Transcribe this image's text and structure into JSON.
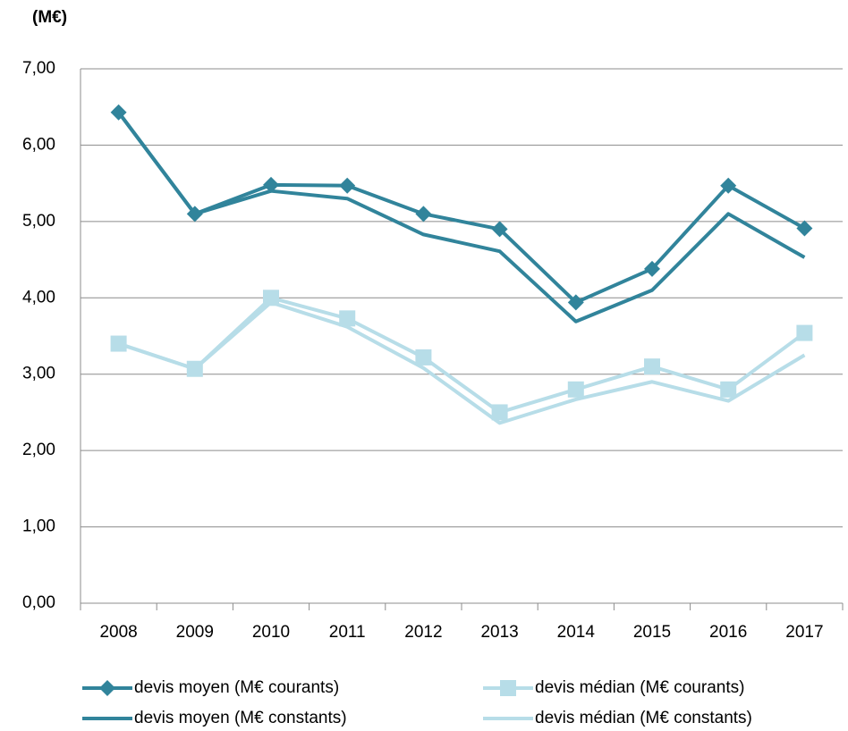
{
  "chart_data": {
    "type": "line",
    "ylabel": "(M€)",
    "categories": [
      "2008",
      "2009",
      "2010",
      "2011",
      "2012",
      "2013",
      "2014",
      "2015",
      "2016",
      "2017"
    ],
    "series": [
      {
        "name": "devis moyen (M€ courants)",
        "color": "#31849b",
        "marker": "diamond",
        "values": [
          6.43,
          5.1,
          5.48,
          5.47,
          5.1,
          4.9,
          3.94,
          4.38,
          5.47,
          4.91
        ]
      },
      {
        "name": "devis médian (M€ courants)",
        "color": "#b7dde8",
        "marker": "square",
        "values": [
          3.4,
          3.07,
          4.0,
          3.73,
          3.22,
          2.5,
          2.8,
          3.1,
          2.8,
          3.54
        ]
      },
      {
        "name": "devis moyen (M€ constants)",
        "color": "#31849b",
        "values": [
          6.43,
          5.1,
          5.4,
          5.3,
          4.83,
          4.61,
          3.69,
          4.1,
          5.1,
          4.53
        ]
      },
      {
        "name": "devis médian (M€ constants)",
        "color": "#b7dde8",
        "values": [
          3.4,
          3.07,
          3.94,
          3.62,
          3.08,
          2.36,
          2.67,
          2.9,
          2.65,
          3.25
        ]
      }
    ],
    "ylim": [
      0,
      7
    ],
    "yticks": [
      {
        "value": 0,
        "label": "0,00"
      },
      {
        "value": 1,
        "label": "1,00"
      },
      {
        "value": 2,
        "label": "2,00"
      },
      {
        "value": 3,
        "label": "3,00"
      },
      {
        "value": 4,
        "label": "4,00"
      },
      {
        "value": 5,
        "label": "5,00"
      },
      {
        "value": 6,
        "label": "6,00"
      },
      {
        "value": 7,
        "label": "7,00"
      }
    ],
    "grid": true,
    "legend": "bottom"
  }
}
